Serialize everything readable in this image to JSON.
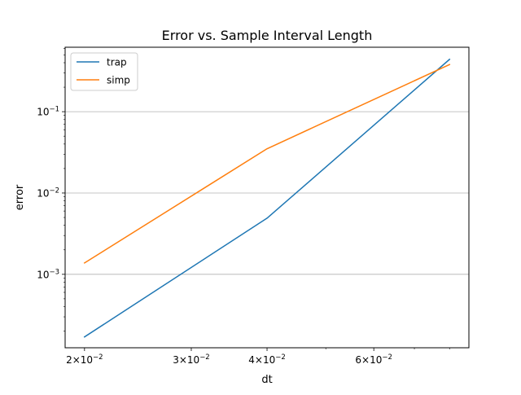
{
  "chart_data": {
    "type": "line",
    "title": "Error vs. Sample Interval Length",
    "xlabel": "dt",
    "ylabel": "error",
    "xscale": "log",
    "yscale": "log",
    "xlim": [
      0.01858,
      0.0861
    ],
    "ylim": [
      0.000125,
      0.62
    ],
    "grid": "y-major",
    "legend": "top-left",
    "x_ticks": [
      {
        "value": 0.02,
        "mant": "2",
        "exp": "-2"
      },
      {
        "value": 0.03,
        "mant": "3",
        "exp": "-2"
      },
      {
        "value": 0.04,
        "mant": "4",
        "exp": "-2"
      },
      {
        "value": 0.06,
        "mant": "6",
        "exp": "-2"
      }
    ],
    "x_minor_ticks": [
      0.05,
      0.07,
      0.08
    ],
    "y_ticks": [
      {
        "value": 0.001,
        "exp": "-3"
      },
      {
        "value": 0.01,
        "exp": "-2"
      },
      {
        "value": 0.1,
        "exp": "-1"
      }
    ],
    "x": [
      0.02,
      0.04,
      0.08
    ],
    "series": [
      {
        "name": "trap",
        "color": "#1f77b4",
        "values": [
          0.00017,
          0.0049,
          0.44
        ]
      },
      {
        "name": "simp",
        "color": "#ff7f0e",
        "values": [
          0.00138,
          0.035,
          0.38
        ]
      }
    ]
  }
}
